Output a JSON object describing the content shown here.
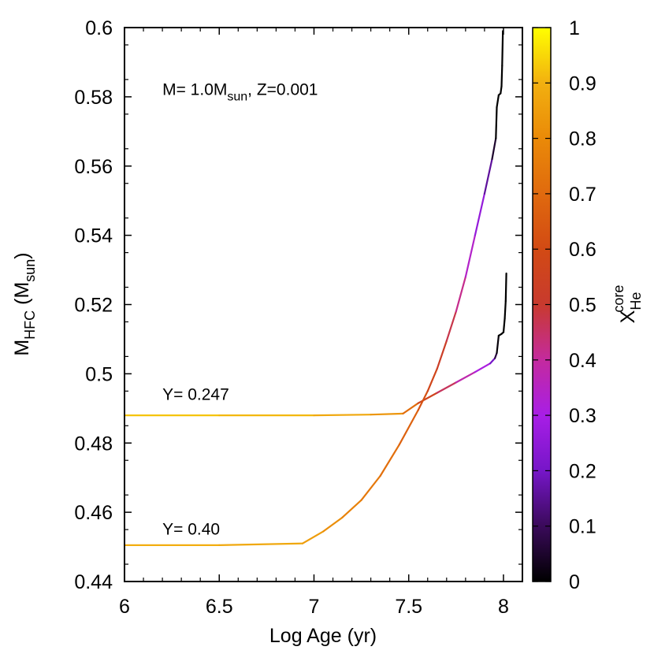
{
  "chart_data": {
    "type": "line",
    "xlabel": "Log Age (yr)",
    "ylabel": {
      "main": "M",
      "sub1": "HFC",
      "mid": " (M",
      "sub2": "sun",
      "end": ")"
    },
    "xlim": [
      6,
      8.1
    ],
    "ylim": [
      0.44,
      0.6
    ],
    "xticks": [
      {
        "v": 6,
        "label": "6"
      },
      {
        "v": 6.5,
        "label": "6.5"
      },
      {
        "v": 7,
        "label": "7"
      },
      {
        "v": 7.5,
        "label": "7.5"
      },
      {
        "v": 8,
        "label": "8"
      }
    ],
    "yticks": [
      {
        "v": 0.44,
        "label": "0.44"
      },
      {
        "v": 0.46,
        "label": "0.46"
      },
      {
        "v": 0.48,
        "label": "0.48"
      },
      {
        "v": 0.5,
        "label": "0.5"
      },
      {
        "v": 0.52,
        "label": "0.52"
      },
      {
        "v": 0.54,
        "label": "0.54"
      },
      {
        "v": 0.56,
        "label": "0.56"
      },
      {
        "v": 0.58,
        "label": "0.58"
      },
      {
        "v": 0.6,
        "label": "0.6"
      }
    ],
    "grid": false,
    "annotations": [
      {
        "text": "Y= 0.247",
        "x": 6.2,
        "y": 0.4925
      },
      {
        "text": "Y= 0.40",
        "x": 6.2,
        "y": 0.4535
      }
    ],
    "title_annotation": {
      "parts": [
        "M= 1.0M",
        "sun",
        ", Z=0.001"
      ],
      "x": 6.2,
      "y": 0.5805
    },
    "colorbar": {
      "label_main": "X",
      "label_sup": "core",
      "label_sub": "He",
      "range": [
        0,
        1
      ],
      "ticks": [
        {
          "v": 0,
          "label": "0"
        },
        {
          "v": 0.1,
          "label": "0.1"
        },
        {
          "v": 0.2,
          "label": "0.2"
        },
        {
          "v": 0.3,
          "label": "0.3"
        },
        {
          "v": 0.4,
          "label": "0.4"
        },
        {
          "v": 0.5,
          "label": "0.5"
        },
        {
          "v": 0.6,
          "label": "0.6"
        },
        {
          "v": 0.7,
          "label": "0.7"
        },
        {
          "v": 0.8,
          "label": "0.8"
        },
        {
          "v": 0.9,
          "label": "0.9"
        },
        {
          "v": 1,
          "label": "1"
        }
      ],
      "stops": [
        {
          "v": 0,
          "color": "#000000"
        },
        {
          "v": 0.1,
          "color": "#3a0a5a"
        },
        {
          "v": 0.2,
          "color": "#7616c8"
        },
        {
          "v": 0.3,
          "color": "#a81ee6"
        },
        {
          "v": 0.4,
          "color": "#c42a9e"
        },
        {
          "v": 0.5,
          "color": "#c83a2e"
        },
        {
          "v": 0.6,
          "color": "#d24a14"
        },
        {
          "v": 0.7,
          "color": "#e06a0e"
        },
        {
          "v": 0.8,
          "color": "#ea8a08"
        },
        {
          "v": 0.9,
          "color": "#f2b010"
        },
        {
          "v": 1,
          "color": "#ffff00"
        }
      ]
    },
    "series": [
      {
        "points": [
          [
            6.0,
            0.488,
            0.93
          ],
          [
            6.5,
            0.488,
            0.92
          ],
          [
            7.0,
            0.488,
            0.9
          ],
          [
            7.3,
            0.4882,
            0.86
          ],
          [
            7.47,
            0.4885,
            0.8
          ],
          [
            7.55,
            0.4915,
            0.62
          ],
          [
            7.65,
            0.4945,
            0.5
          ],
          [
            7.75,
            0.4975,
            0.42
          ],
          [
            7.85,
            0.5005,
            0.34
          ],
          [
            7.93,
            0.503,
            0.28
          ],
          [
            7.955,
            0.5045,
            0.12
          ],
          [
            7.965,
            0.506,
            0.02
          ],
          [
            7.975,
            0.511,
            0.0
          ],
          [
            7.99,
            0.5115,
            0.0
          ],
          [
            8.0,
            0.512,
            0.0
          ],
          [
            8.007,
            0.516,
            0.0
          ],
          [
            8.012,
            0.521,
            0.0
          ],
          [
            8.015,
            0.529,
            0.0
          ]
        ]
      },
      {
        "points": [
          [
            6.0,
            0.4505,
            0.9
          ],
          [
            6.5,
            0.4505,
            0.89
          ],
          [
            6.94,
            0.451,
            0.87
          ],
          [
            7.05,
            0.4545,
            0.83
          ],
          [
            7.15,
            0.4585,
            0.79
          ],
          [
            7.25,
            0.4635,
            0.76
          ],
          [
            7.35,
            0.4705,
            0.73
          ],
          [
            7.45,
            0.4795,
            0.7
          ],
          [
            7.55,
            0.4895,
            0.65
          ],
          [
            7.6,
            0.495,
            0.6
          ],
          [
            7.65,
            0.5015,
            0.55
          ],
          [
            7.7,
            0.5095,
            0.5
          ],
          [
            7.75,
            0.518,
            0.45
          ],
          [
            7.8,
            0.528,
            0.38
          ],
          [
            7.85,
            0.54,
            0.3
          ],
          [
            7.9,
            0.552,
            0.22
          ],
          [
            7.94,
            0.562,
            0.1
          ],
          [
            7.96,
            0.568,
            0.0
          ],
          [
            7.965,
            0.577,
            0.0
          ],
          [
            7.975,
            0.5805,
            0.0
          ],
          [
            7.985,
            0.581,
            0.0
          ],
          [
            7.99,
            0.583,
            0.0
          ],
          [
            7.993,
            0.589,
            0.0
          ],
          [
            7.997,
            0.599,
            0.0
          ]
        ]
      }
    ]
  }
}
